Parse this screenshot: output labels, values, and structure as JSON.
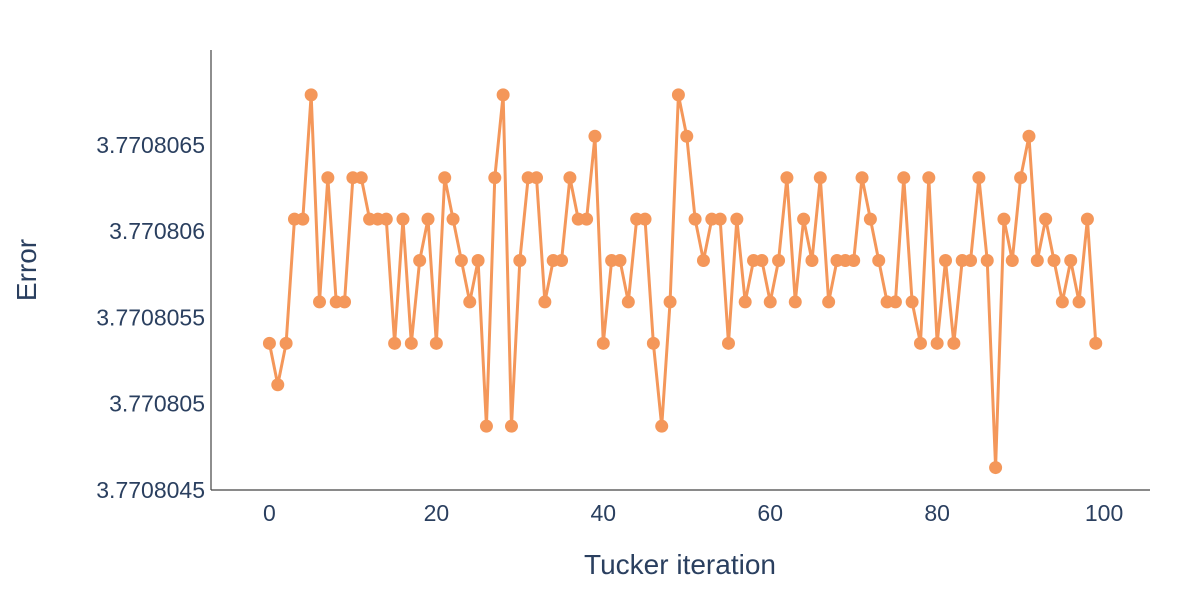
{
  "chart_data": {
    "type": "line",
    "title": "",
    "xlabel": "Tucker iteration",
    "ylabel": "Error",
    "xlim": [
      -7,
      105.5
    ],
    "ylim": [
      3.7708045,
      3.77080705
    ],
    "grid": false,
    "legend": "none",
    "x_ticks": [
      0,
      20,
      40,
      60,
      80,
      100
    ],
    "x_tick_labels": [
      "0",
      "20",
      "40",
      "60",
      "80",
      "100"
    ],
    "y_ticks": [
      3.7708045,
      3.770805,
      3.7708055,
      3.770806,
      3.7708065
    ],
    "y_tick_labels": [
      "3.7708045",
      "3.770805",
      "3.7708055",
      "3.770806",
      "3.7708065"
    ],
    "series": [
      {
        "color": "#f4975a",
        "x": [
          0,
          1,
          2,
          3,
          4,
          5,
          6,
          7,
          8,
          9,
          10,
          11,
          12,
          13,
          14,
          15,
          16,
          17,
          18,
          19,
          20,
          21,
          22,
          23,
          24,
          25,
          26,
          27,
          28,
          29,
          30,
          31,
          32,
          33,
          34,
          35,
          36,
          37,
          38,
          39,
          40,
          41,
          42,
          43,
          44,
          45,
          46,
          47,
          48,
          49,
          50,
          51,
          52,
          53,
          54,
          55,
          56,
          57,
          58,
          59,
          60,
          61,
          62,
          63,
          64,
          65,
          66,
          67,
          68,
          69,
          70,
          71,
          72,
          73,
          74,
          75,
          76,
          77,
          78,
          79,
          80,
          81,
          82,
          83,
          84,
          85,
          86,
          87,
          88,
          89,
          90,
          91,
          92,
          93,
          94,
          95,
          96,
          97,
          98,
          99
        ],
        "y": [
          3.77080535,
          3.77080511,
          3.77080535,
          3.77080607,
          3.77080607,
          3.77080679,
          3.77080559,
          3.77080631,
          3.77080559,
          3.77080559,
          3.77080631,
          3.77080631,
          3.77080607,
          3.77080607,
          3.77080607,
          3.77080535,
          3.77080607,
          3.77080535,
          3.77080583,
          3.77080607,
          3.77080535,
          3.77080631,
          3.77080607,
          3.77080583,
          3.77080559,
          3.77080583,
          3.77080487,
          3.77080631,
          3.77080679,
          3.77080487,
          3.77080583,
          3.77080631,
          3.77080631,
          3.77080559,
          3.77080583,
          3.77080583,
          3.77080631,
          3.77080607,
          3.77080607,
          3.77080655,
          3.77080535,
          3.77080583,
          3.77080583,
          3.77080559,
          3.77080607,
          3.77080607,
          3.77080535,
          3.77080487,
          3.77080559,
          3.77080679,
          3.77080655,
          3.77080607,
          3.77080583,
          3.77080607,
          3.77080607,
          3.77080535,
          3.77080607,
          3.77080559,
          3.77080583,
          3.77080583,
          3.77080559,
          3.77080583,
          3.77080631,
          3.77080559,
          3.77080607,
          3.77080583,
          3.77080631,
          3.77080559,
          3.77080583,
          3.77080583,
          3.77080583,
          3.77080631,
          3.77080607,
          3.77080583,
          3.77080559,
          3.77080559,
          3.77080631,
          3.77080559,
          3.77080535,
          3.77080631,
          3.77080535,
          3.77080583,
          3.77080535,
          3.77080583,
          3.77080583,
          3.77080631,
          3.77080583,
          3.77080463,
          3.77080607,
          3.77080583,
          3.77080631,
          3.77080655,
          3.77080583,
          3.77080607,
          3.77080583,
          3.77080559,
          3.77080583,
          3.77080559,
          3.77080607,
          3.77080535
        ]
      }
    ]
  }
}
